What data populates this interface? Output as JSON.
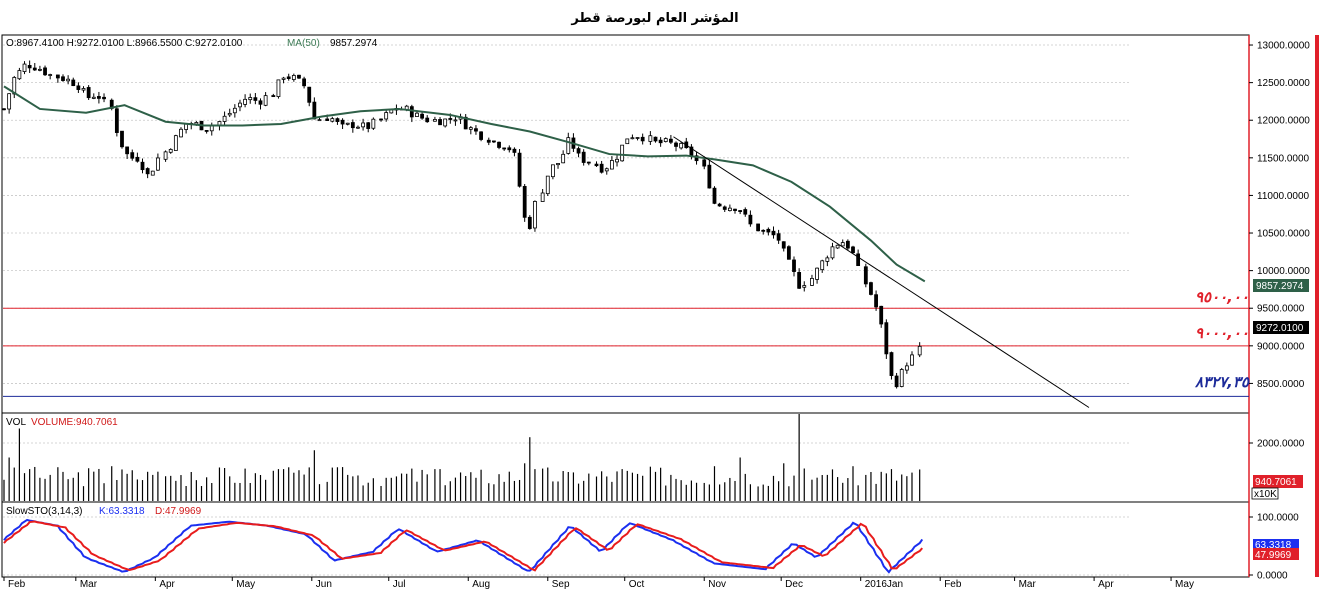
{
  "title": "المؤشر العام لبورصة قطر",
  "colors": {
    "up": "#ffffff",
    "down": "#000000",
    "ma": "#2e6048",
    "trend": "#000000",
    "resistance": "#e0202a",
    "support": "#1d2b9a",
    "frame_red": "#e0202a",
    "k_line": "#1b2ff0",
    "d_line": "#e81c1c",
    "volume": "#000000"
  },
  "price_panel": {
    "ohlc_text": "O:8967.4100  H:9272.0100  L:8966.5500  C:9272.0100",
    "ma_label": "MA(50)",
    "ma_value": "9857.2974",
    "last_price_tag": "9272.0100",
    "ma_tag": "9857.2974",
    "y_ticks": [
      "13000.0000",
      "12500.0000",
      "12000.0000",
      "11500.0000",
      "11000.0000",
      "10500.0000",
      "10000.0000",
      "9500.0000",
      "9000.0000",
      "8500.0000"
    ]
  },
  "annotations": {
    "level_9500": "٩٥٠٠,٠٠",
    "level_9000": "٩٠٠٠,٠٠",
    "level_8327": "٨٣٢٧,٣٥"
  },
  "volume_panel": {
    "label": "VOL",
    "volume_text": "VOLUME:940.7061",
    "last_tag": "940.7061",
    "unit_tag": "x10K",
    "y_ticks": [
      "2000.0000"
    ]
  },
  "stoch_panel": {
    "label": "SlowSTO(3,14,3)",
    "k_text": "K:63.3318",
    "d_text": "D:47.9969",
    "k_tag": "63.3318",
    "d_tag": "47.9969",
    "y_ticks": [
      "100.0000",
      "0.0000"
    ]
  },
  "x_axis_labels": [
    "Feb",
    "Mar",
    "Apr",
    "May",
    "Jun",
    "Jul",
    "Aug",
    "Sep",
    "Oct",
    "Nov",
    "Dec",
    "2016Jan",
    "Feb",
    "Mar",
    "Apr",
    "May"
  ],
  "chart_data": {
    "type": "candlestick",
    "title": "المؤشر العام لبورصة قطر",
    "x_range": [
      "2015-02-01",
      "2016-05-31"
    ],
    "price_ylim": [
      8120,
      13120
    ],
    "price_series": [
      {
        "date": "2015-02-01",
        "close": 12150
      },
      {
        "date": "2015-02-05",
        "close": 12550
      },
      {
        "date": "2015-02-10",
        "close": 12750
      },
      {
        "date": "2015-02-15",
        "close": 12700
      },
      {
        "date": "2015-02-20",
        "close": 12600
      },
      {
        "date": "2015-02-25",
        "close": 12550
      },
      {
        "date": "2015-03-02",
        "close": 12480
      },
      {
        "date": "2015-03-06",
        "close": 12300
      },
      {
        "date": "2015-03-10",
        "close": 12350
      },
      {
        "date": "2015-03-15",
        "close": 12150
      },
      {
        "date": "2015-03-18",
        "close": 11750
      },
      {
        "date": "2015-03-22",
        "close": 11500
      },
      {
        "date": "2015-03-26",
        "close": 11500
      },
      {
        "date": "2015-03-30",
        "close": 11250
      },
      {
        "date": "2015-04-03",
        "close": 11500
      },
      {
        "date": "2015-04-08",
        "close": 11700
      },
      {
        "date": "2015-04-13",
        "close": 11950
      },
      {
        "date": "2015-04-17",
        "close": 11950
      },
      {
        "date": "2015-04-22",
        "close": 11900
      },
      {
        "date": "2015-04-27",
        "close": 12000
      },
      {
        "date": "2015-05-02",
        "close": 12150
      },
      {
        "date": "2015-05-07",
        "close": 12300
      },
      {
        "date": "2015-05-12",
        "close": 12250
      },
      {
        "date": "2015-05-17",
        "close": 12350
      },
      {
        "date": "2015-05-21",
        "close": 12600
      },
      {
        "date": "2015-05-26",
        "close": 12550
      },
      {
        "date": "2015-05-30",
        "close": 12450
      },
      {
        "date": "2015-06-03",
        "close": 12000
      },
      {
        "date": "2015-06-08",
        "close": 12050
      },
      {
        "date": "2015-06-13",
        "close": 11900
      },
      {
        "date": "2015-06-18",
        "close": 11950
      },
      {
        "date": "2015-06-23",
        "close": 11900
      },
      {
        "date": "2015-06-28",
        "close": 12000
      },
      {
        "date": "2015-07-03",
        "close": 12150
      },
      {
        "date": "2015-07-08",
        "close": 12150
      },
      {
        "date": "2015-07-13",
        "close": 12050
      },
      {
        "date": "2015-07-18",
        "close": 12000
      },
      {
        "date": "2015-07-23",
        "close": 12000
      },
      {
        "date": "2015-07-28",
        "close": 12050
      },
      {
        "date": "2015-08-02",
        "close": 11900
      },
      {
        "date": "2015-08-07",
        "close": 11800
      },
      {
        "date": "2015-08-12",
        "close": 11700
      },
      {
        "date": "2015-08-17",
        "close": 11650
      },
      {
        "date": "2015-08-20",
        "close": 11500
      },
      {
        "date": "2015-08-23",
        "close": 10800
      },
      {
        "date": "2015-08-25",
        "close": 10500
      },
      {
        "date": "2015-08-28",
        "close": 10900
      },
      {
        "date": "2015-09-02",
        "close": 11350
      },
      {
        "date": "2015-09-06",
        "close": 11450
      },
      {
        "date": "2015-09-10",
        "close": 11750
      },
      {
        "date": "2015-09-14",
        "close": 11500
      },
      {
        "date": "2015-09-18",
        "close": 11450
      },
      {
        "date": "2015-09-23",
        "close": 11350
      },
      {
        "date": "2015-09-28",
        "close": 11500
      },
      {
        "date": "2015-10-03",
        "close": 11800
      },
      {
        "date": "2015-10-08",
        "close": 11800
      },
      {
        "date": "2015-10-13",
        "close": 11700
      },
      {
        "date": "2015-10-18",
        "close": 11700
      },
      {
        "date": "2015-10-23",
        "close": 11650
      },
      {
        "date": "2015-10-28",
        "close": 11550
      },
      {
        "date": "2015-11-02",
        "close": 11300
      },
      {
        "date": "2015-11-05",
        "close": 10900
      },
      {
        "date": "2015-11-10",
        "close": 10850
      },
      {
        "date": "2015-11-15",
        "close": 10850
      },
      {
        "date": "2015-11-20",
        "close": 10600
      },
      {
        "date": "2015-11-25",
        "close": 10500
      },
      {
        "date": "2015-11-30",
        "close": 10450
      },
      {
        "date": "2015-12-03",
        "close": 10200
      },
      {
        "date": "2015-12-06",
        "close": 10000
      },
      {
        "date": "2015-12-09",
        "close": 9800
      },
      {
        "date": "2015-12-13",
        "close": 9900
      },
      {
        "date": "2015-12-17",
        "close": 10100
      },
      {
        "date": "2015-12-21",
        "close": 10300
      },
      {
        "date": "2015-12-25",
        "close": 10400
      },
      {
        "date": "2015-12-29",
        "close": 10300
      },
      {
        "date": "2016-01-02",
        "close": 9900
      },
      {
        "date": "2016-01-05",
        "close": 9700
      },
      {
        "date": "2016-01-08",
        "close": 9450
      },
      {
        "date": "2016-01-11",
        "close": 9000
      },
      {
        "date": "2016-01-13",
        "close": 8600
      },
      {
        "date": "2016-01-16",
        "close": 8500
      },
      {
        "date": "2016-01-19",
        "close": 8750
      },
      {
        "date": "2016-01-22",
        "close": 8850
      },
      {
        "date": "2016-01-24",
        "close": 8950
      },
      {
        "date": "2016-01-26",
        "close": 9272
      }
    ],
    "ma50_series": [
      {
        "date": "2015-02-01",
        "value": 12450
      },
      {
        "date": "2015-02-15",
        "value": 12150
      },
      {
        "date": "2015-03-05",
        "value": 12100
      },
      {
        "date": "2015-03-20",
        "value": 12200
      },
      {
        "date": "2015-04-05",
        "value": 11980
      },
      {
        "date": "2015-04-20",
        "value": 11930
      },
      {
        "date": "2015-05-05",
        "value": 11930
      },
      {
        "date": "2015-05-20",
        "value": 11950
      },
      {
        "date": "2015-06-05",
        "value": 12050
      },
      {
        "date": "2015-06-20",
        "value": 12120
      },
      {
        "date": "2015-07-05",
        "value": 12150
      },
      {
        "date": "2015-07-25",
        "value": 12070
      },
      {
        "date": "2015-08-10",
        "value": 11950
      },
      {
        "date": "2015-08-25",
        "value": 11850
      },
      {
        "date": "2015-09-10",
        "value": 11700
      },
      {
        "date": "2015-09-25",
        "value": 11550
      },
      {
        "date": "2015-10-10",
        "value": 11520
      },
      {
        "date": "2015-10-25",
        "value": 11530
      },
      {
        "date": "2015-11-05",
        "value": 11480
      },
      {
        "date": "2015-11-20",
        "value": 11400
      },
      {
        "date": "2015-12-05",
        "value": 11180
      },
      {
        "date": "2015-12-20",
        "value": 10850
      },
      {
        "date": "2016-01-05",
        "value": 10400
      },
      {
        "date": "2016-01-15",
        "value": 10080
      },
      {
        "date": "2016-01-26",
        "value": 9857.2974
      }
    ],
    "trendline": {
      "from": {
        "date": "2015-10-20",
        "value": 11780
      },
      "to": {
        "date": "2016-03-30",
        "value": 8180
      }
    },
    "horizontal_levels": [
      9500,
      9000,
      8327.35
    ],
    "volume_ylim": [
      0,
      3000
    ],
    "volume_series": [
      {
        "date": "2015-02-03",
        "value": 1500
      },
      {
        "date": "2015-02-08",
        "value": 2500
      },
      {
        "date": "2015-02-12",
        "value": 1100
      },
      {
        "date": "2015-02-20",
        "value": 900
      },
      {
        "date": "2015-03-01",
        "value": 800
      },
      {
        "date": "2015-03-15",
        "value": 1200
      },
      {
        "date": "2015-04-01",
        "value": 900
      },
      {
        "date": "2015-04-15",
        "value": 1000
      },
      {
        "date": "2015-05-01",
        "value": 850
      },
      {
        "date": "2015-05-20",
        "value": 1100
      },
      {
        "date": "2015-06-02",
        "value": 1750
      },
      {
        "date": "2015-06-15",
        "value": 900
      },
      {
        "date": "2015-07-01",
        "value": 800
      },
      {
        "date": "2015-07-20",
        "value": 1100
      },
      {
        "date": "2015-08-05",
        "value": 800
      },
      {
        "date": "2015-08-23",
        "value": 1300
      },
      {
        "date": "2015-08-25",
        "value": 2200
      },
      {
        "date": "2015-09-10",
        "value": 1000
      },
      {
        "date": "2015-10-01",
        "value": 1100
      },
      {
        "date": "2015-10-20",
        "value": 900
      },
      {
        "date": "2015-11-05",
        "value": 1200
      },
      {
        "date": "2015-11-15",
        "value": 1500
      },
      {
        "date": "2015-12-03",
        "value": 1300
      },
      {
        "date": "2015-12-08",
        "value": 3000
      },
      {
        "date": "2015-12-20",
        "value": 900
      },
      {
        "date": "2016-01-05",
        "value": 1000
      },
      {
        "date": "2016-01-14",
        "value": 1100
      },
      {
        "date": "2016-01-26",
        "value": 940.7061
      }
    ],
    "stoch_ylim": [
      0,
      100
    ],
    "stoch_k": [
      {
        "date": "2015-02-01",
        "value": 60
      },
      {
        "date": "2015-02-10",
        "value": 95
      },
      {
        "date": "2015-02-22",
        "value": 85
      },
      {
        "date": "2015-03-05",
        "value": 30
      },
      {
        "date": "2015-03-20",
        "value": 5
      },
      {
        "date": "2015-04-01",
        "value": 30
      },
      {
        "date": "2015-04-15",
        "value": 85
      },
      {
        "date": "2015-04-30",
        "value": 92
      },
      {
        "date": "2015-05-15",
        "value": 85
      },
      {
        "date": "2015-05-30",
        "value": 70
      },
      {
        "date": "2015-06-10",
        "value": 25
      },
      {
        "date": "2015-06-25",
        "value": 40
      },
      {
        "date": "2015-07-05",
        "value": 80
      },
      {
        "date": "2015-07-20",
        "value": 40
      },
      {
        "date": "2015-08-05",
        "value": 60
      },
      {
        "date": "2015-08-25",
        "value": 5
      },
      {
        "date": "2015-09-10",
        "value": 85
      },
      {
        "date": "2015-09-22",
        "value": 40
      },
      {
        "date": "2015-10-03",
        "value": 90
      },
      {
        "date": "2015-10-20",
        "value": 60
      },
      {
        "date": "2015-11-05",
        "value": 20
      },
      {
        "date": "2015-11-25",
        "value": 10
      },
      {
        "date": "2015-12-06",
        "value": 55
      },
      {
        "date": "2015-12-15",
        "value": 30
      },
      {
        "date": "2015-12-30",
        "value": 92
      },
      {
        "date": "2016-01-12",
        "value": 5
      },
      {
        "date": "2016-01-26",
        "value": 63.3318
      }
    ],
    "stoch_d": [
      {
        "date": "2015-02-01",
        "value": 55
      },
      {
        "date": "2015-02-12",
        "value": 93
      },
      {
        "date": "2015-02-25",
        "value": 82
      },
      {
        "date": "2015-03-08",
        "value": 35
      },
      {
        "date": "2015-03-22",
        "value": 8
      },
      {
        "date": "2015-04-03",
        "value": 25
      },
      {
        "date": "2015-04-18",
        "value": 80
      },
      {
        "date": "2015-05-03",
        "value": 90
      },
      {
        "date": "2015-05-18",
        "value": 84
      },
      {
        "date": "2015-06-02",
        "value": 68
      },
      {
        "date": "2015-06-13",
        "value": 28
      },
      {
        "date": "2015-06-28",
        "value": 38
      },
      {
        "date": "2015-07-08",
        "value": 78
      },
      {
        "date": "2015-07-23",
        "value": 42
      },
      {
        "date": "2015-08-08",
        "value": 58
      },
      {
        "date": "2015-08-27",
        "value": 8
      },
      {
        "date": "2015-09-12",
        "value": 82
      },
      {
        "date": "2015-09-25",
        "value": 42
      },
      {
        "date": "2015-10-06",
        "value": 88
      },
      {
        "date": "2015-10-23",
        "value": 62
      },
      {
        "date": "2015-11-08",
        "value": 22
      },
      {
        "date": "2015-11-28",
        "value": 12
      },
      {
        "date": "2015-12-09",
        "value": 52
      },
      {
        "date": "2015-12-18",
        "value": 32
      },
      {
        "date": "2016-01-02",
        "value": 90
      },
      {
        "date": "2016-01-14",
        "value": 8
      },
      {
        "date": "2016-01-26",
        "value": 47.9969
      }
    ]
  }
}
